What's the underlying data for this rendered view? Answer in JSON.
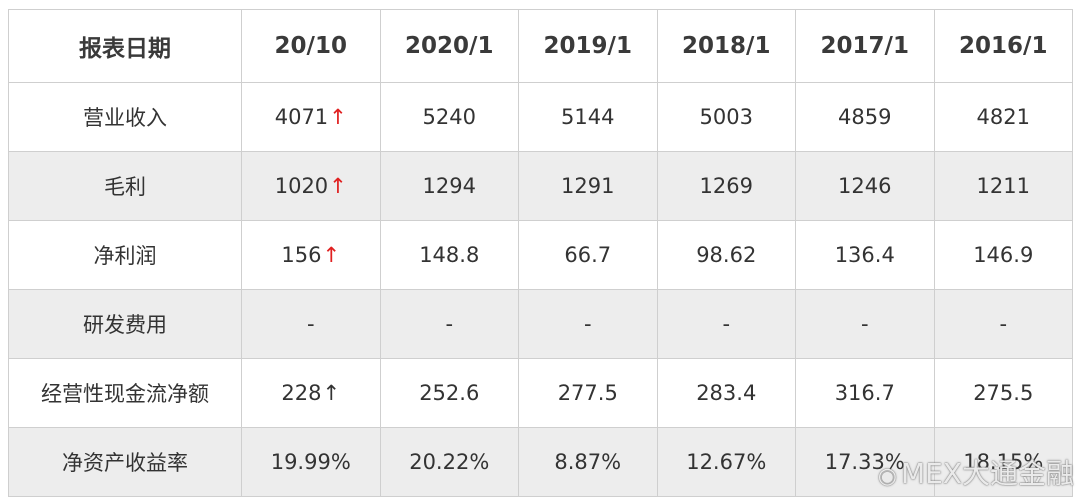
{
  "table": {
    "header": [
      "报表日期",
      "20/10",
      "2020/1",
      "2019/1",
      "2018/1",
      "2017/1",
      "2016/1"
    ],
    "rows": [
      {
        "label": "营业收入",
        "cells": [
          "4071",
          "5240",
          "5144",
          "5003",
          "4859",
          "4821"
        ],
        "first_arrow": "↑",
        "first_arrow_color": "#e02020"
      },
      {
        "label": "毛利",
        "cells": [
          "1020",
          "1294",
          "1291",
          "1269",
          "1246",
          "1211"
        ],
        "first_arrow": "↑",
        "first_arrow_color": "#e02020"
      },
      {
        "label": "净利润",
        "cells": [
          "156",
          "148.8",
          "66.7",
          "98.62",
          "136.4",
          "146.9"
        ],
        "first_arrow": "↑",
        "first_arrow_color": "#e02020"
      },
      {
        "label": "研发费用",
        "cells": [
          "-",
          "-",
          "-",
          "-",
          "-",
          "-"
        ],
        "first_arrow": "",
        "first_arrow_color": ""
      },
      {
        "label": "经营性现金流净额",
        "cells": [
          "228",
          "252.6",
          "277.5",
          "283.4",
          "316.7",
          "275.5"
        ],
        "first_arrow": "↑",
        "first_arrow_color": "#333333"
      },
      {
        "label": "净资产收益率",
        "cells": [
          "19.99%",
          "20.22%",
          "8.87%",
          "12.67%",
          "17.33%",
          "18.15%"
        ],
        "first_arrow": "",
        "first_arrow_color": ""
      }
    ]
  },
  "watermark": {
    "text": "MEX大通金融",
    "icon": "weibo-logo-icon"
  },
  "colors": {
    "border": "#cfcfcf",
    "stripe": "#ededed",
    "arrow_up": "#e02020"
  }
}
